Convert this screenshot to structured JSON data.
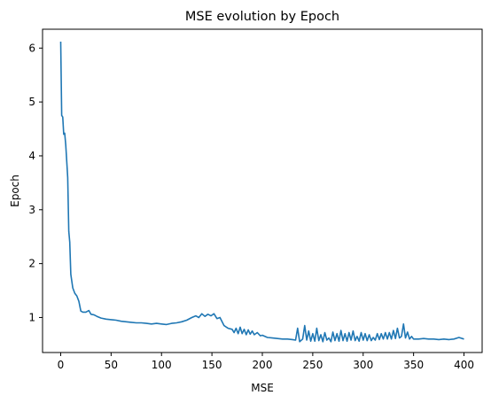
{
  "chart_data": {
    "type": "line",
    "title": "MSE evolution by Epoch",
    "xlabel": "MSE",
    "ylabel": "Epoch",
    "xlim": [
      -18,
      418
    ],
    "ylim": [
      0.35,
      6.35
    ],
    "xticks": [
      0,
      50,
      100,
      150,
      200,
      250,
      300,
      350,
      400
    ],
    "yticks": [
      1,
      2,
      3,
      4,
      5,
      6
    ],
    "grid": false,
    "colors": {
      "line": "#1f77b4",
      "axes": "#000000"
    },
    "series": [
      {
        "x": [
          0,
          1,
          2,
          3,
          4,
          5,
          6,
          7,
          8,
          9,
          10,
          12,
          14,
          16,
          18,
          20,
          22,
          25,
          28,
          30,
          33,
          36,
          40,
          45,
          50,
          55,
          60,
          65,
          70,
          75,
          80,
          85,
          90,
          95,
          100,
          105,
          110,
          115,
          120,
          125,
          130,
          134,
          137,
          140,
          143,
          146,
          149,
          152,
          155,
          158,
          162,
          166,
          170,
          172,
          174,
          176,
          178,
          180,
          182,
          184,
          186,
          188,
          190,
          192,
          195,
          198,
          200,
          205,
          210,
          215,
          220,
          225,
          230,
          233,
          235,
          237,
          240,
          242,
          244,
          246,
          248,
          250,
          252,
          254,
          256,
          258,
          260,
          262,
          264,
          266,
          268,
          270,
          272,
          274,
          276,
          278,
          280,
          282,
          284,
          286,
          288,
          290,
          292,
          294,
          296,
          298,
          300,
          302,
          304,
          306,
          308,
          310,
          312,
          314,
          316,
          318,
          320,
          322,
          324,
          326,
          328,
          330,
          332,
          334,
          336,
          338,
          340,
          342,
          344,
          346,
          348,
          350,
          355,
          360,
          365,
          370,
          375,
          380,
          385,
          390,
          395,
          400
        ],
        "y": [
          6.12,
          4.75,
          4.72,
          4.4,
          4.42,
          4.2,
          3.9,
          3.6,
          2.6,
          2.4,
          1.8,
          1.55,
          1.45,
          1.4,
          1.3,
          1.12,
          1.1,
          1.1,
          1.13,
          1.06,
          1.05,
          1.02,
          0.99,
          0.97,
          0.96,
          0.95,
          0.93,
          0.92,
          0.91,
          0.9,
          0.9,
          0.89,
          0.88,
          0.89,
          0.88,
          0.87,
          0.89,
          0.9,
          0.92,
          0.95,
          1.0,
          1.03,
          1.0,
          1.07,
          1.02,
          1.06,
          1.03,
          1.07,
          0.98,
          1.0,
          0.85,
          0.8,
          0.78,
          0.72,
          0.8,
          0.7,
          0.82,
          0.7,
          0.78,
          0.68,
          0.77,
          0.69,
          0.75,
          0.68,
          0.72,
          0.66,
          0.67,
          0.63,
          0.62,
          0.61,
          0.6,
          0.6,
          0.59,
          0.58,
          0.8,
          0.55,
          0.6,
          0.85,
          0.58,
          0.75,
          0.56,
          0.7,
          0.56,
          0.8,
          0.57,
          0.68,
          0.55,
          0.72,
          0.58,
          0.62,
          0.55,
          0.73,
          0.57,
          0.7,
          0.56,
          0.76,
          0.57,
          0.7,
          0.56,
          0.72,
          0.58,
          0.75,
          0.57,
          0.65,
          0.56,
          0.72,
          0.58,
          0.7,
          0.57,
          0.68,
          0.57,
          0.63,
          0.58,
          0.7,
          0.59,
          0.7,
          0.6,
          0.72,
          0.6,
          0.72,
          0.6,
          0.76,
          0.61,
          0.8,
          0.62,
          0.65,
          0.88,
          0.62,
          0.73,
          0.6,
          0.65,
          0.6,
          0.6,
          0.61,
          0.6,
          0.6,
          0.59,
          0.6,
          0.59,
          0.6,
          0.63,
          0.6
        ]
      }
    ]
  }
}
